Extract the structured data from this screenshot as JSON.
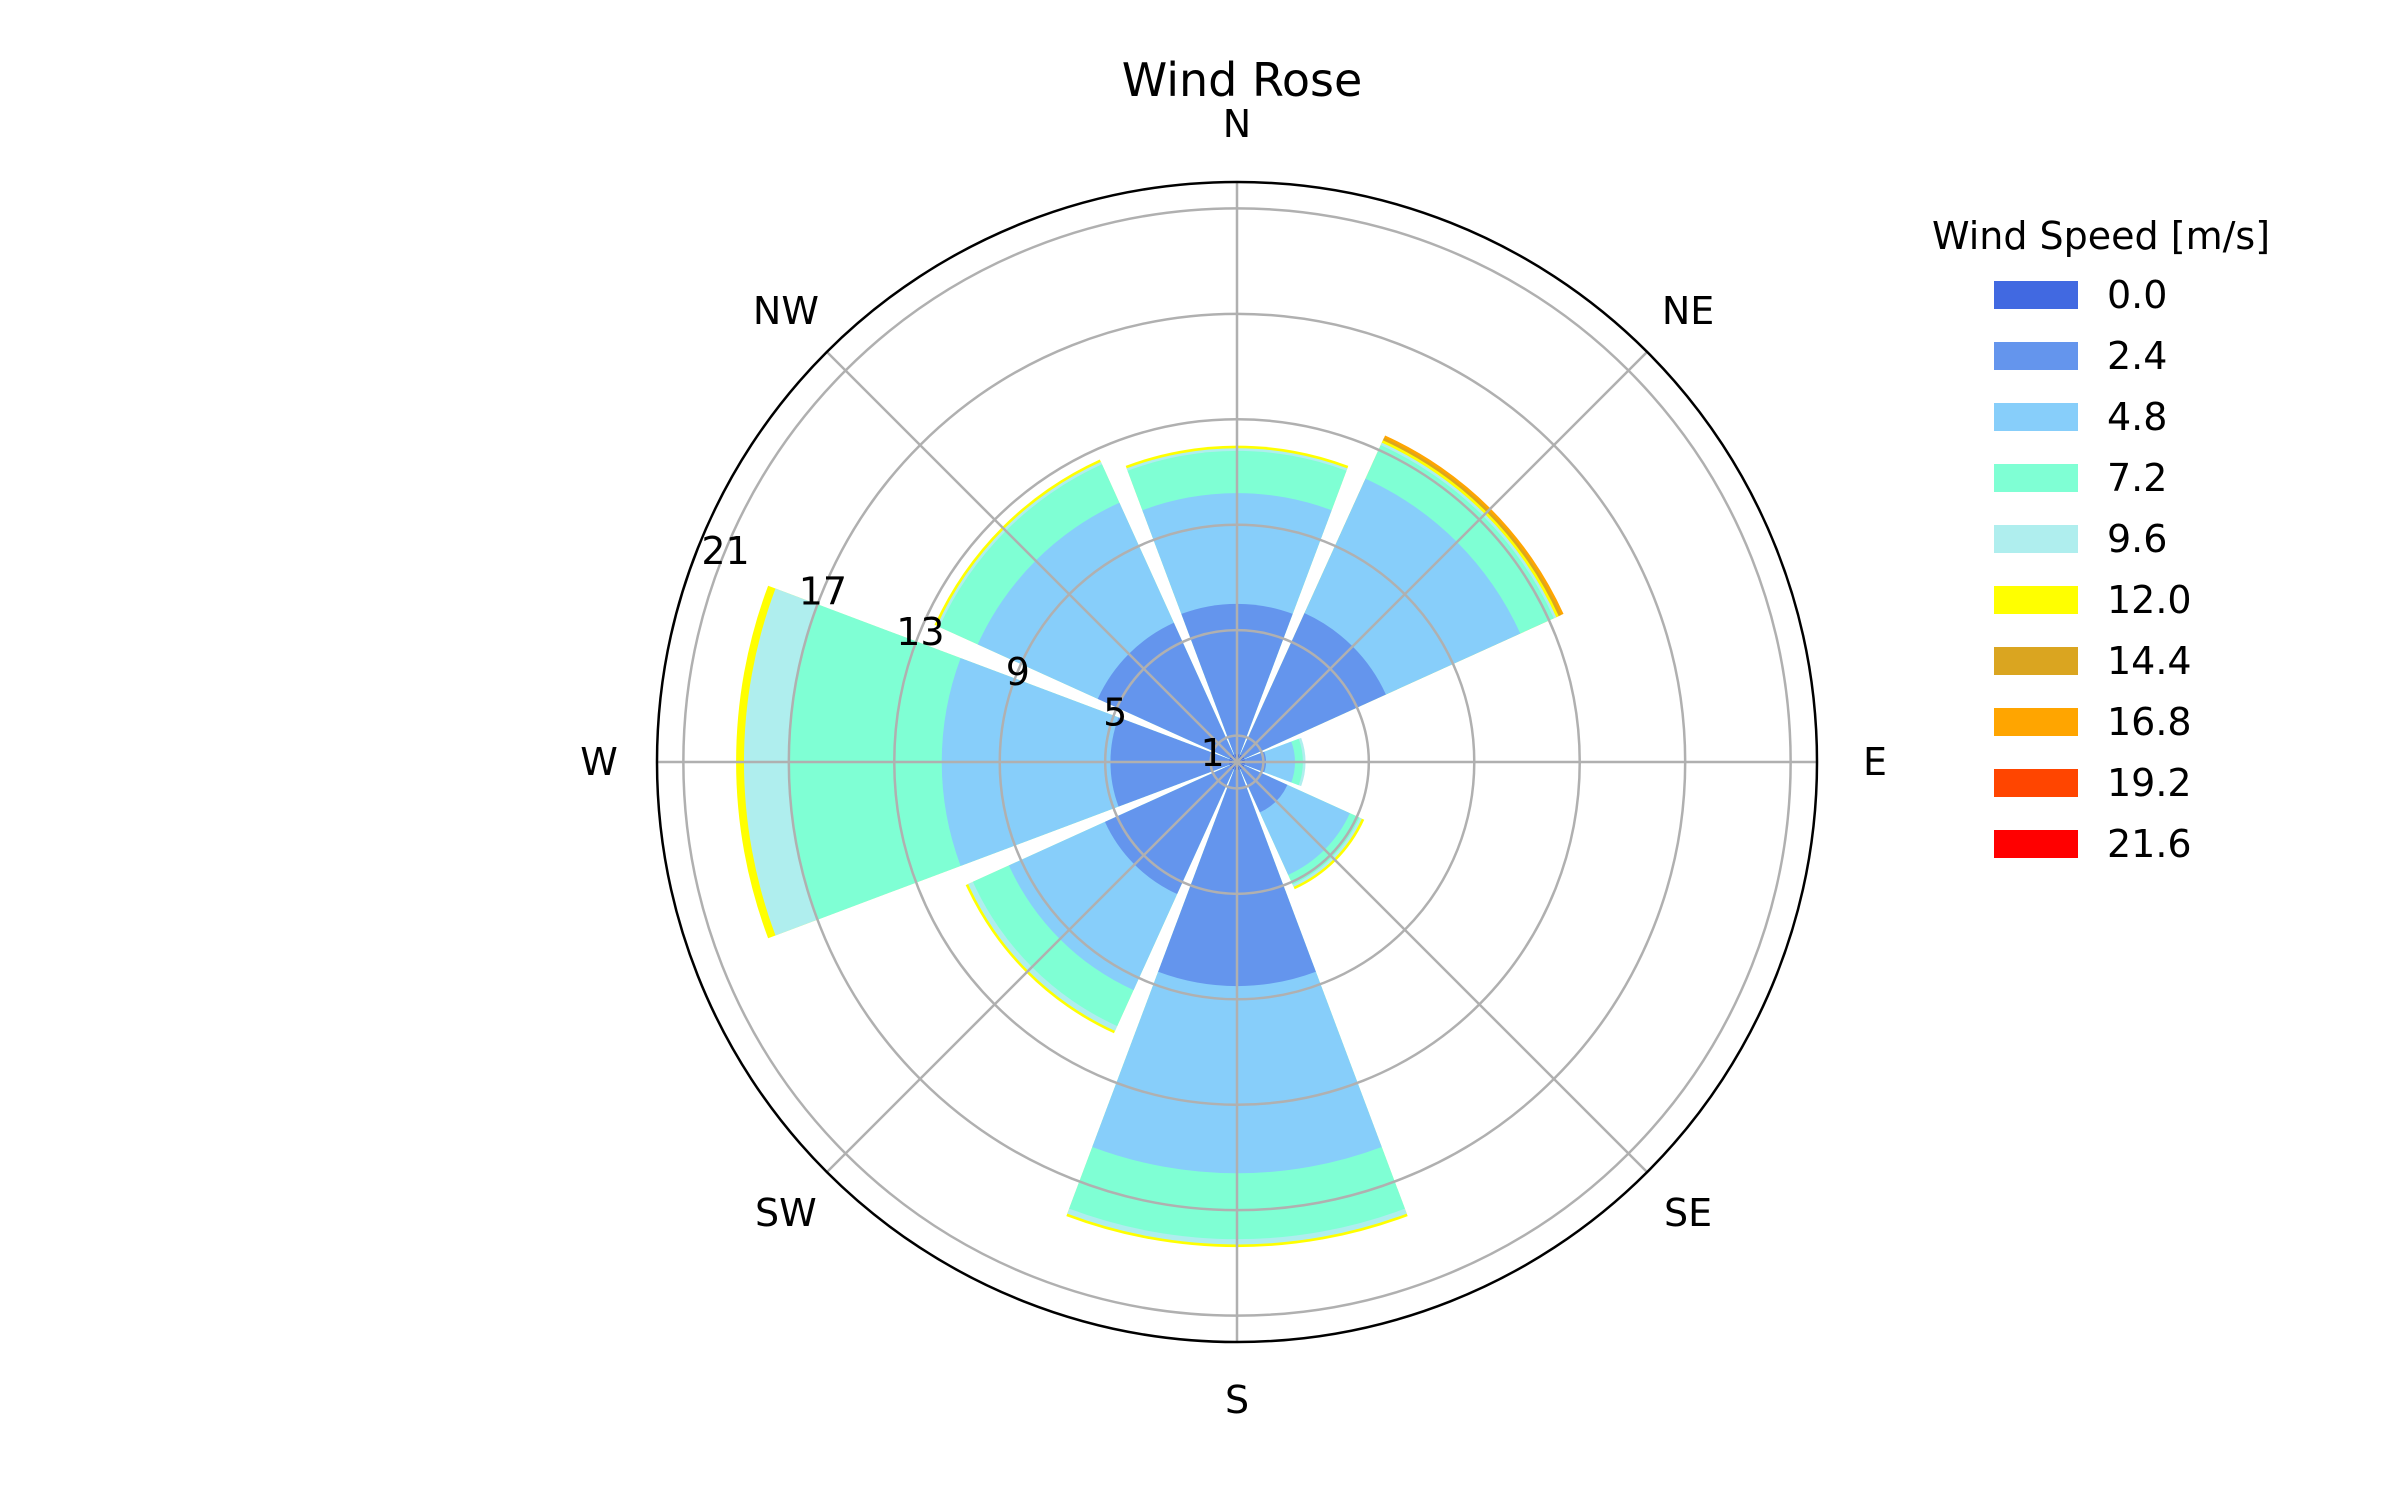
{
  "chart_data": {
    "type": "bar",
    "subtype": "polar-stacked-windrose",
    "title": "Wind Rose",
    "directions": [
      "N",
      "NE",
      "E",
      "SE",
      "S",
      "SW",
      "W",
      "NW"
    ],
    "radial_ticks": [
      "1",
      "5",
      "9",
      "13",
      "17",
      "21"
    ],
    "radial_tick_values": [
      1,
      5,
      9,
      13,
      17,
      21
    ],
    "rmax": 22,
    "grid": true,
    "legend": {
      "title": "Wind Speed [m/s]",
      "placement": "right"
    },
    "speed_bins": [
      "0.0",
      "2.4",
      "4.8",
      "7.2",
      "9.6",
      "12.0",
      "14.4",
      "16.8",
      "19.2",
      "21.6"
    ],
    "colors": [
      "#4169e1",
      "#6495ed",
      "#87cefa",
      "#7fffd4",
      "#afeeee",
      "#ffff00",
      "#daa520",
      "#ffa500",
      "#ff4500",
      "#ff0000"
    ],
    "segments": [
      {
        "name": "0.0",
        "values": [
          0.3,
          0.3,
          0.3,
          0.3,
          0.3,
          0.3,
          0.3,
          0.3
        ]
      },
      {
        "name": "2.4",
        "values": [
          6.0,
          6.2,
          1.1,
          2.1,
          8.5,
          5.5,
          4.8,
          5.8
        ]
      },
      {
        "name": "4.8",
        "values": [
          10.2,
          11.8,
          2.2,
          4.7,
          15.6,
          9.5,
          11.2,
          10.8
        ]
      },
      {
        "name": "7.2",
        "values": [
          11.8,
          13.2,
          2.5,
          5.1,
          18.1,
          11.0,
          17.0,
          12.4
        ]
      },
      {
        "name": "9.6",
        "values": [
          11.9,
          13.3,
          2.6,
          5.2,
          18.3,
          11.2,
          18.7,
          12.5
        ]
      },
      {
        "name": "12.0",
        "values": [
          12.0,
          13.4,
          2.6,
          5.3,
          18.4,
          11.3,
          19.0,
          12.6
        ]
      },
      {
        "name": "14.4",
        "values": [
          12.0,
          13.5,
          2.6,
          5.3,
          18.4,
          11.3,
          19.0,
          12.6
        ]
      },
      {
        "name": "16.8",
        "values": [
          12.0,
          13.6,
          2.6,
          5.3,
          18.4,
          11.3,
          19.0,
          12.6
        ]
      },
      {
        "name": "19.2",
        "values": [
          12.0,
          13.6,
          2.6,
          5.3,
          18.4,
          11.3,
          19.0,
          12.6
        ]
      },
      {
        "name": "21.6",
        "values": [
          12.0,
          13.6,
          2.6,
          5.3,
          18.4,
          11.3,
          19.0,
          12.6
        ]
      }
    ]
  }
}
